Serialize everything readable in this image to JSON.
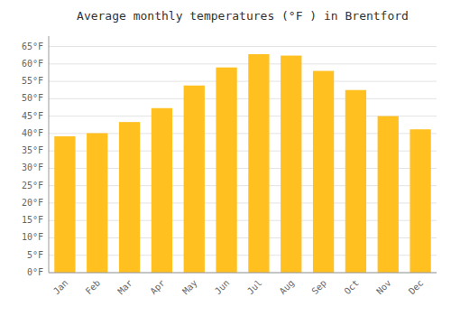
{
  "chart_data": {
    "type": "bar",
    "title": "Average monthly temperatures (°F ) in Brentford",
    "categories": [
      "Jan",
      "Feb",
      "Mar",
      "Apr",
      "May",
      "Jun",
      "Jul",
      "Aug",
      "Sep",
      "Oct",
      "Nov",
      "Dec"
    ],
    "values": [
      39.2,
      40.1,
      43.3,
      47.3,
      53.8,
      59.0,
      62.8,
      62.4,
      58.0,
      52.5,
      45.0,
      41.2
    ],
    "color": "#FFC020",
    "ylim": [
      0,
      68
    ],
    "yticks": [
      {
        "value": 0,
        "label": "0°F"
      },
      {
        "value": 5,
        "label": "5°F"
      },
      {
        "value": 10,
        "label": "10°F"
      },
      {
        "value": 15,
        "label": "15°F"
      },
      {
        "value": 20,
        "label": "20°F"
      },
      {
        "value": 25,
        "label": "25°F"
      },
      {
        "value": 30,
        "label": "30°F"
      },
      {
        "value": 35,
        "label": "35°F"
      },
      {
        "value": 40,
        "label": "40°F"
      },
      {
        "value": 45,
        "label": "45°F"
      },
      {
        "value": 50,
        "label": "50°F"
      },
      {
        "value": 55,
        "label": "55°F"
      },
      {
        "value": 60,
        "label": "60°F"
      },
      {
        "value": 65,
        "label": "65°F"
      }
    ],
    "grid": true
  }
}
